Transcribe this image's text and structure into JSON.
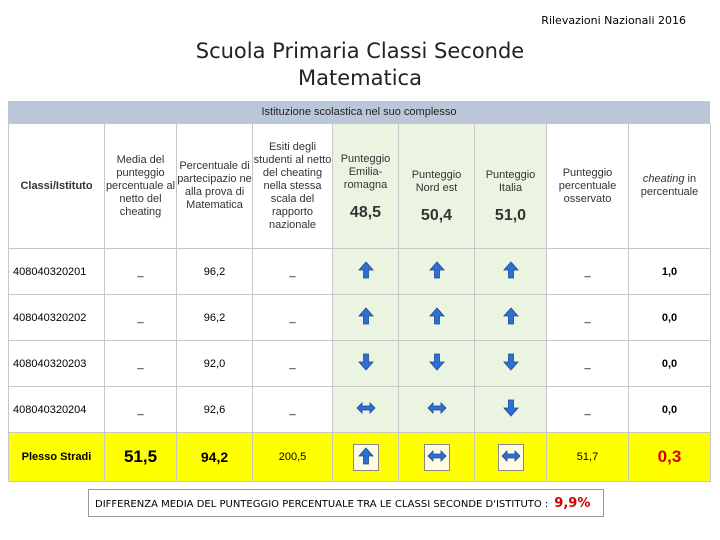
{
  "top_label": "Rilevazioni Nazionali 2016",
  "title_line1": "Scuola Primaria   Classi Seconde",
  "title_line2": "Matematica",
  "band_label": "Istituzione scolastica nel suo complesso",
  "headers": {
    "classi": "Classi/Istituto",
    "media": "Media del punteggio percentuale al netto del cheating",
    "percentuale": "Percentuale di partecipazio ne alla prova di Matematica",
    "esiti": "Esiti degli studenti al netto del cheating nella stessa scala del rapporto nazionale",
    "emilia": "Punteggio Emilia-romagna",
    "nord": "Punteggio Nord est",
    "italia": "Punteggio Italia",
    "osservato": "Punteggio percentuale osservato",
    "cheating_word": "cheating",
    "cheating_rest": " in percentuale"
  },
  "benchmarks": {
    "emilia": "48,5",
    "nord": "50,4",
    "italia": "51,0"
  },
  "rows": [
    {
      "code": "408040320201",
      "media": "_",
      "perc": "96,2",
      "esiti": "_",
      "arrows": [
        "up",
        "up",
        "up"
      ],
      "oss": "_",
      "cheat": "1,0"
    },
    {
      "code": "408040320202",
      "media": "_",
      "perc": "96,2",
      "esiti": "_",
      "arrows": [
        "up",
        "up",
        "up"
      ],
      "oss": "_",
      "cheat": "0,0"
    },
    {
      "code": "408040320203",
      "media": "_",
      "perc": "92,0",
      "esiti": "_",
      "arrows": [
        "down",
        "down",
        "down"
      ],
      "oss": "_",
      "cheat": "0,0"
    },
    {
      "code": "408040320204",
      "media": "_",
      "perc": "92,6",
      "esiti": "_",
      "arrows": [
        "both",
        "both",
        "down"
      ],
      "oss": "_",
      "cheat": "0,0"
    }
  ],
  "plesso": {
    "label": "Plesso Stradi",
    "media": "51,5",
    "perc": "94,2",
    "esiti": "200,5",
    "arrows": [
      "up",
      "both",
      "both"
    ],
    "oss": "51,7",
    "cheat": "0,3"
  },
  "footer": {
    "text": "DIFFERENZA MEDIA DEL PUNTEGGIO PERCENTUALE TRA LE CLASSI SECONDE D'ISTITUTO :",
    "value": "9,9%"
  },
  "colors": {
    "band": "#bcc6d9",
    "green_cols": "#ebf3e1",
    "plesso_row": "#ffff00",
    "arrow_blue": "#2e6fd1",
    "cheat_red": "#dd0000"
  }
}
